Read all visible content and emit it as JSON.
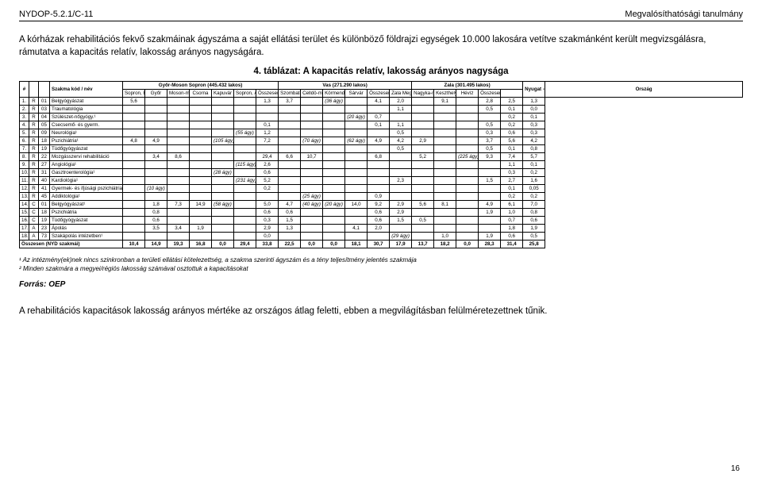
{
  "doc_id": "NYDOP-5.2.1/C-11",
  "doc_title": "Megvalósíthatósági tanulmány",
  "intro_p1": "A kórházak rehabilitációs fekvő szakmáinak ágyszáma a saját ellátási terület és különböző földrajzi egységek 10.000 lakosára vetítve szakmánként került megvizsgálásra, rámutatva a kapacitás relatív, lakosság arányos nagyságára.",
  "table_title": "4. táblázat: A kapacitás relatív, lakosság arányos nagysága",
  "region_groups": [
    {
      "label": "Győr-Moson Sopron (445.432 lakos)",
      "span": 7
    },
    {
      "label": "Vas (271.290 lakos)",
      "span": 6
    },
    {
      "label": "Zala (301.495 lakos)",
      "span": 5
    }
  ],
  "tail_headers": [
    "Nyugat - Dunántúl²",
    "Ország"
  ],
  "headers_row2": [
    "#",
    "",
    "",
    "Szakma kód / név",
    "Sopron, Erzsébet Kórház",
    "Győr",
    "Moson-magyar-óvár",
    "Csorna",
    "Kapuvár",
    "Sopron, Állami Szana-tórium",
    "Összesen²",
    "Szombat-hely, VMMK",
    "Celldö-mölk",
    "Körmend",
    "Sárvár",
    "Összesen²",
    "Zala Megyei Kórház",
    "Nagyka-nizsa",
    "Keszthely",
    "Hévíz",
    "Összesen²"
  ],
  "rows": [
    [
      "1.",
      "R",
      "01",
      "Belgyógyászat",
      "5,6",
      "",
      "",
      "",
      "",
      "",
      "1,3",
      "3,7",
      "",
      "(36 ágy)",
      "",
      "4,1",
      "2,0",
      "",
      "9,1",
      "",
      "2,8",
      "2,5",
      "1,3"
    ],
    [
      "2.",
      "R",
      "03",
      "Traumatológia",
      "",
      "",
      "",
      "",
      "",
      "",
      "",
      "",
      "",
      "",
      "",
      "",
      "1,1",
      "",
      "",
      "",
      "0,5",
      "0,1",
      "0,0"
    ],
    [
      "3.",
      "R",
      "04",
      "Szülészet-nőgyógy.¹",
      "",
      "",
      "",
      "",
      "",
      "",
      "",
      "",
      "",
      "",
      "(20 ágy)",
      "0,7",
      "",
      "",
      "",
      "",
      "",
      "0,2",
      "0,1"
    ],
    [
      "4.",
      "R",
      "05",
      "Csecsemő- és gyerm.",
      "",
      "",
      "",
      "",
      "",
      "",
      "0,1",
      "",
      "",
      "",
      "",
      "0,1",
      "1,1",
      "",
      "",
      "",
      "0,5",
      "0,2",
      "0,3"
    ],
    [
      "5.",
      "R",
      "09",
      "Neurológia¹",
      "",
      "",
      "",
      "",
      "",
      "(55 ágy)",
      "1,2",
      "",
      "",
      "",
      "",
      "",
      "0,5",
      "",
      "",
      "",
      "0,3",
      "0,6",
      "0,3"
    ],
    [
      "6.",
      "R",
      "18",
      "Pszichiátria¹",
      "4,8",
      "4,9",
      "",
      "",
      "(105 ágy)",
      "",
      "7,2",
      "",
      "(70 ágy)",
      "",
      "(62 ágy)",
      "4,9",
      "4,2",
      "2,9",
      "",
      "",
      "3,7",
      "5,6",
      "4,2"
    ],
    [
      "7.",
      "R",
      "19",
      "Tüdőgyógyászat",
      "",
      "",
      "",
      "",
      "",
      "",
      "",
      "",
      "",
      "",
      "",
      "",
      "0,5",
      "",
      "",
      "",
      "0,5",
      "0,1",
      "0,8"
    ],
    [
      "8.",
      "R",
      "22",
      "Mozgásszervi rehabilitáció",
      "",
      "3,4",
      "8,6",
      "",
      "",
      "",
      "29,4",
      "6,6",
      "10,7",
      "",
      "",
      "6,8",
      "",
      "5,2",
      "",
      "(225 ágy)",
      "9,3",
      "7,4",
      "5,7"
    ],
    [
      "9.",
      "R",
      "27",
      "Angiológia¹",
      "",
      "",
      "",
      "",
      "",
      "(115 ágy)",
      "2,6",
      "",
      "",
      "",
      "",
      "",
      "",
      "",
      "",
      "",
      "",
      "1,1",
      "0,1"
    ],
    [
      "10.",
      "R",
      "31",
      "Gasztroenterológia¹",
      "",
      "",
      "",
      "",
      "(28 ágy)",
      "",
      "0,6",
      "",
      "",
      "",
      "",
      "",
      "",
      "",
      "",
      "",
      "",
      "0,3",
      "0,2"
    ],
    [
      "11.",
      "R",
      "40",
      "Kardiológia¹",
      "",
      "",
      "",
      "",
      "",
      "(231 ágy)",
      "5,2",
      "",
      "",
      "",
      "",
      "",
      "2,3",
      "",
      "",
      "",
      "1,5",
      "2,7",
      "1,6"
    ],
    [
      "12.",
      "R",
      "41",
      "Gyermek- és ifjúsági pszichiátria¹",
      "",
      "(10 ágy)",
      "",
      "",
      "",
      "",
      "0,2",
      "",
      "",
      "",
      "",
      "",
      "",
      "",
      "",
      "",
      "",
      "0,1",
      "0,05"
    ],
    [
      "13.",
      "R",
      "45",
      "Addiktológia¹",
      "",
      "",
      "",
      "",
      "",
      "",
      "",
      "",
      "(25 ágy)",
      "",
      "",
      "0,9",
      "",
      "",
      "",
      "",
      "",
      "0,2",
      "0,2"
    ],
    [
      "14.",
      "C",
      "01",
      "Belgyógyászat¹",
      "",
      "1,8",
      "7,3",
      "14,9",
      "(58 ágy)",
      "",
      "5,0",
      "4,7",
      "(40 ágy)",
      "(20 ágy)",
      "14,0",
      "9,2",
      "2,9",
      "5,6",
      "8,1",
      "",
      "4,9",
      "6,1",
      "7,0"
    ],
    [
      "15.",
      "C",
      "18",
      "Pszichiátria",
      "",
      "0,8",
      "",
      "",
      "",
      "",
      "0,6",
      "0,6",
      "",
      "",
      "",
      "0,6",
      "2,9",
      "",
      "",
      "",
      "1,9",
      "1,0",
      "0,8"
    ],
    [
      "16.",
      "C",
      "19",
      "Tüdőgyógyászat",
      "",
      "0,6",
      "",
      "",
      "",
      "",
      "0,3",
      "1,5",
      "",
      "",
      "",
      "0,6",
      "1,5",
      "0,5",
      "",
      "",
      "",
      "0,7",
      "0,6"
    ],
    [
      "17.",
      "A",
      "23",
      "Ápolás",
      "",
      "3,5",
      "3,4",
      "1,9",
      "",
      "",
      "2,9",
      "1,3",
      "",
      "",
      "4,1",
      "2,0",
      "",
      "",
      "",
      "",
      "",
      "1,8",
      "1,9"
    ],
    [
      "18.",
      "A",
      "73",
      "Szakápolás intézetben¹",
      "",
      "",
      "",
      "",
      "",
      "",
      "0,0",
      "",
      "",
      "",
      "",
      "",
      "(29 ágy)",
      "",
      "1,0",
      "",
      "1,9",
      "0,6",
      "0,5"
    ]
  ],
  "totals": [
    "Összesen (NYD szakmái)",
    "",
    "",
    "",
    "10,4",
    "14,9",
    "19,3",
    "16,8",
    "0,0",
    "29,4",
    "33,8",
    "22,5",
    "0,0",
    "0,0",
    "18,1",
    "30,7",
    "17,9",
    "13,7",
    "18,2",
    "0,0",
    "28,3",
    "31,4",
    "25,8"
  ],
  "footnote1": "¹ Az intézmény(ek)nek nincs szinkronban a területi ellátási kötelezettség, a szakma szerinti ágyszám és a tény teljesítmény jelentés szakmája",
  "footnote2": "² Minden szakmára a megyei/régiós lakosság számával osztottuk a kapacitásokat",
  "source": "Forrás: OEP",
  "conclusion": "A rehabilitációs kapacitások lakosság arányos mértéke az országos átlag feletti, ebben a megvilágításban felülméretezettnek tűnik.",
  "page_number": "16",
  "italic_markers": [
    "(36 ágy)",
    "(20 ágy)",
    "(55 ágy)",
    "(105 ágy)",
    "(70 ágy)",
    "(62 ágy)",
    "(115 ágy)",
    "(28 ágy)",
    "(231 ágy)",
    "(10 ágy)",
    "(25 ágy)",
    "(58 ágy)",
    "(40 ágy)",
    "(225 ágy)",
    "(29 ágy)"
  ]
}
